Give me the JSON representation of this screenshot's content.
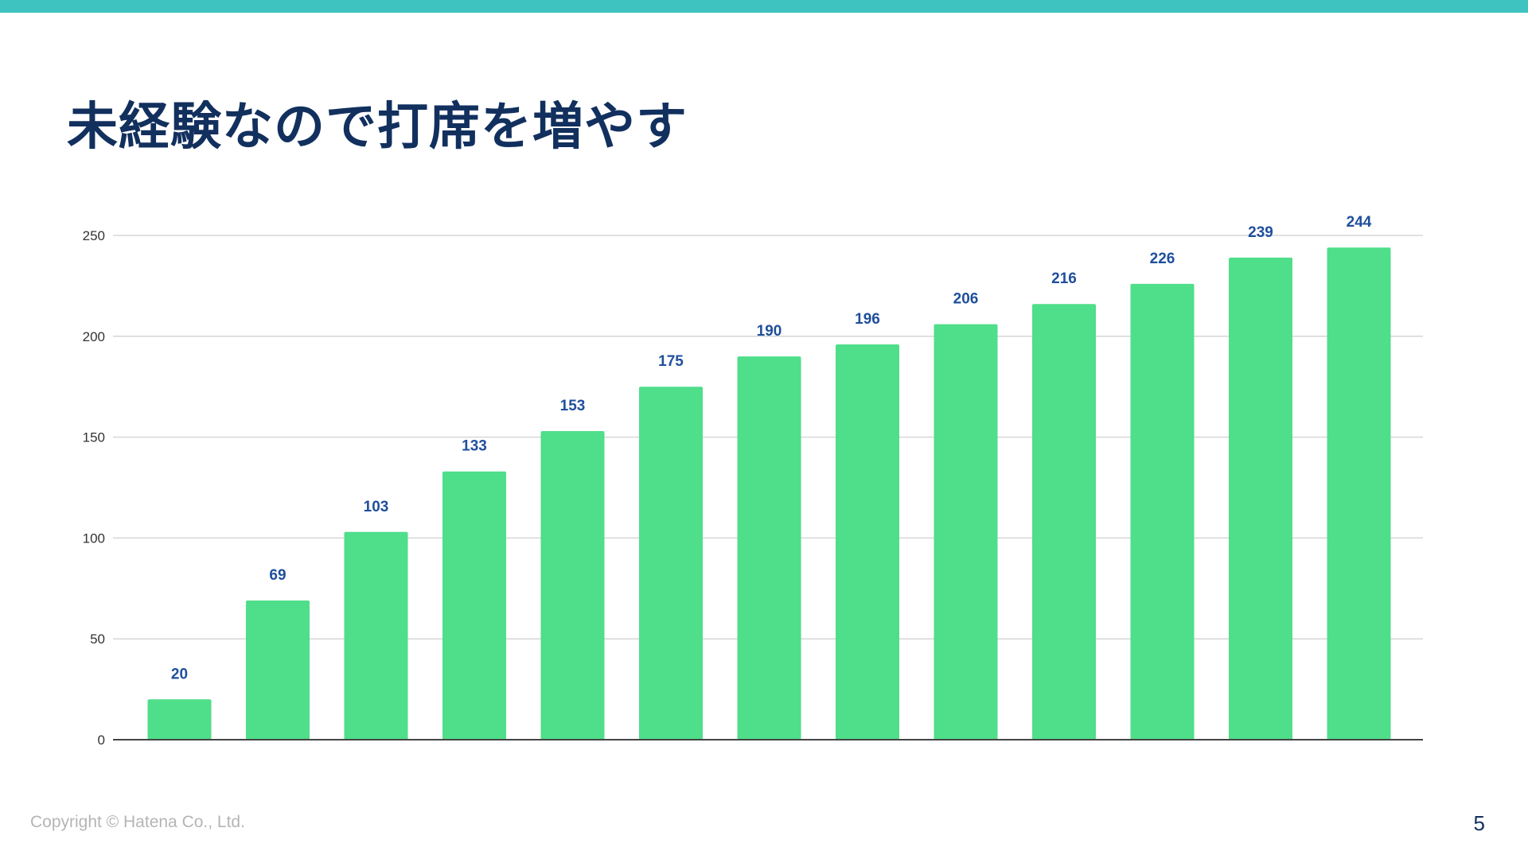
{
  "slide": {
    "title": "未経験なので打席を増やす",
    "copyright": "Copyright © Hatena Co., Ltd.",
    "page_number": "5"
  },
  "colors": {
    "top_bar": "#3fc3c0",
    "title": "#12305e",
    "bar": "#4fde8a",
    "data_label": "#1f4f9c",
    "grid": "#d6d6d6",
    "axis": "#444444",
    "tick_label": "#333333"
  },
  "chart_data": {
    "type": "bar",
    "title": "",
    "xlabel": "",
    "ylabel": "",
    "ylim": [
      0,
      250
    ],
    "yticks": [
      0,
      50,
      100,
      150,
      200,
      250
    ],
    "grid": true,
    "legend": "none",
    "values": [
      20,
      69,
      103,
      133,
      153,
      175,
      190,
      196,
      206,
      216,
      226,
      239,
      244
    ],
    "data_labels": [
      "20",
      "69",
      "103",
      "133",
      "153",
      "175",
      "190",
      "196",
      "206",
      "216",
      "226",
      "239",
      "244"
    ]
  }
}
